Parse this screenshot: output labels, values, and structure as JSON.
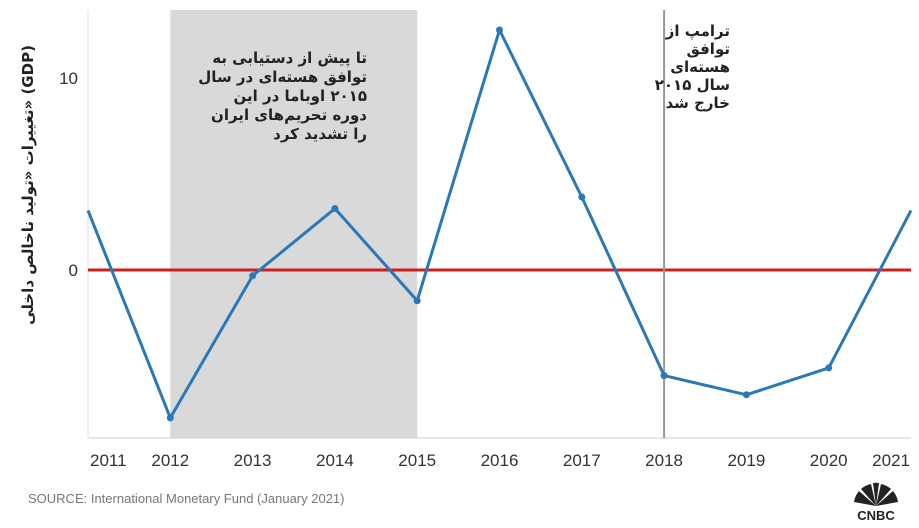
{
  "chart_data": {
    "type": "line",
    "title": "",
    "ylabel": "تغییرات «تولید ناخالص داخلی» (GDP)",
    "xlabel": "",
    "x": [
      "2011",
      "2012",
      "2013",
      "2014",
      "2015",
      "2016",
      "2017",
      "2018",
      "2019",
      "2020",
      "2021"
    ],
    "series": [
      {
        "name": "",
        "color": "#2b78b8",
        "values": [
          3.1,
          -7.7,
          -0.3,
          3.2,
          -1.6,
          12.5,
          3.8,
          -5.5,
          -6.5,
          -5.1,
          3.1
        ]
      }
    ],
    "yticks": [
      0,
      10
    ],
    "ylim": [
      -9,
      14
    ],
    "reference_line": {
      "y": 0,
      "color": "#cc1f1f"
    },
    "shaded_period": {
      "from": "2012",
      "to": "2015",
      "color": "#d9d9d9"
    },
    "vertical_marker": {
      "x": "2018",
      "color": "#999999"
    },
    "annotations": [
      {
        "text": "تا پیش از دستیابی به توافق هسته‌ای در سال ۲۰۱۵ اوباما در این دوره تحریم‌های ایران را تشدید کرد",
        "near": "shaded_period"
      },
      {
        "text": "ترامپ از توافق هسته‌ای سال ۲۰۱۵ خارج شد",
        "near": "vertical_marker"
      }
    ],
    "grid": false
  },
  "source": "SOURCE: International Monetary Fund (January 2021)",
  "logo": {
    "name": "cnbc-logo",
    "text": "CNBC"
  },
  "colors": {
    "line": "#2b78b8",
    "zero_line": "#cc1f1f",
    "shade": "#d9d9d9",
    "marker": "#999999"
  }
}
